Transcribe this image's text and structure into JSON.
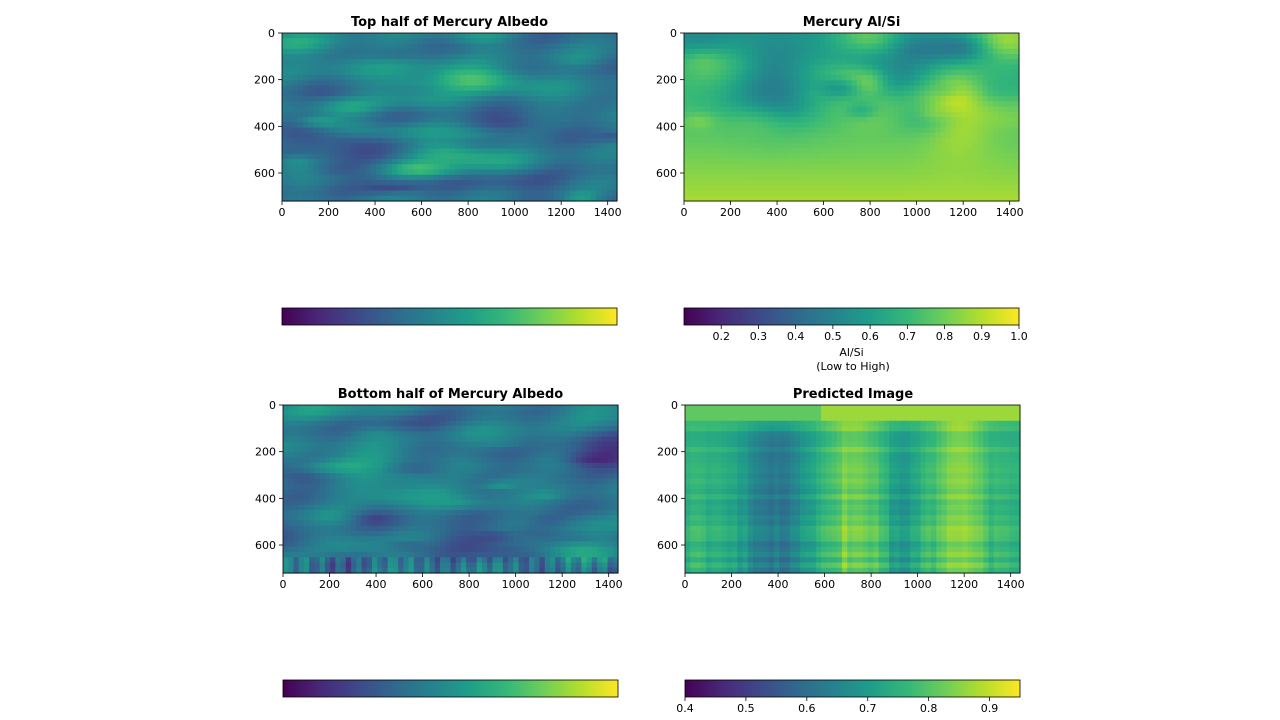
{
  "colors": {
    "viridis": [
      "#440154",
      "#482878",
      "#3e4989",
      "#31688e",
      "#26828e",
      "#1f9e89",
      "#35b779",
      "#6ece58",
      "#b5de2b",
      "#fde725"
    ],
    "axis": "#000000",
    "background": "#ffffff"
  },
  "chart_data": [
    {
      "type": "heatmap",
      "title": "Top half of Mercury Albedo",
      "xlabel": "",
      "ylabel": "",
      "xlim": [
        0,
        1440
      ],
      "ylim": [
        0,
        720
      ],
      "xticks": [
        0,
        200,
        400,
        600,
        800,
        1000,
        1200,
        1400
      ],
      "yticks": [
        0,
        200,
        400,
        600
      ],
      "texture": "albedo",
      "colorbar": {
        "label": "",
        "sublabel": "",
        "ticks": [],
        "range": [
          0,
          1
        ]
      }
    },
    {
      "type": "heatmap",
      "title": "Mercury Al/Si",
      "xlabel": "",
      "ylabel": "",
      "xlim": [
        0,
        1440
      ],
      "ylim": [
        0,
        720
      ],
      "xticks": [
        0,
        200,
        400,
        600,
        800,
        1000,
        1200,
        1400
      ],
      "yticks": [
        0,
        200,
        400,
        600
      ],
      "texture": "alsi",
      "colorbar": {
        "label": "Al/Si",
        "sublabel": "(Low to High)",
        "ticks": [
          0.2,
          0.3,
          0.4,
          0.5,
          0.6,
          0.7,
          0.8,
          0.9,
          1.0
        ],
        "tick_labels": [
          "0.2",
          "0.3",
          "0.4",
          "0.5",
          "0.6",
          "0.7",
          "0.8",
          "0.9",
          "1.0"
        ],
        "range": [
          0.1,
          1.0
        ]
      }
    },
    {
      "type": "heatmap",
      "title": "Bottom half of Mercury Albedo",
      "xlabel": "",
      "ylabel": "",
      "xlim": [
        0,
        1440
      ],
      "ylim": [
        0,
        720
      ],
      "xticks": [
        0,
        200,
        400,
        600,
        800,
        1000,
        1200,
        1400
      ],
      "yticks": [
        0,
        200,
        400,
        600
      ],
      "texture": "albedo2",
      "colorbar": {
        "label": "",
        "sublabel": "",
        "ticks": [],
        "range": [
          0,
          1
        ]
      }
    },
    {
      "type": "heatmap",
      "title": "Predicted Image",
      "xlabel": "",
      "ylabel": "",
      "xlim": [
        0,
        1440
      ],
      "ylim": [
        0,
        720
      ],
      "xticks": [
        0,
        200,
        400,
        600,
        800,
        1000,
        1200,
        1400
      ],
      "yticks": [
        0,
        200,
        400,
        600
      ],
      "texture": "predicted",
      "colorbar": {
        "label": "",
        "sublabel": "",
        "ticks": [
          0.4,
          0.5,
          0.6,
          0.7,
          0.8,
          0.9
        ],
        "tick_labels": [
          "0.4",
          "0.5",
          "0.6",
          "0.7",
          "0.8",
          "0.9"
        ],
        "range": [
          0.4,
          0.95
        ]
      }
    }
  ]
}
